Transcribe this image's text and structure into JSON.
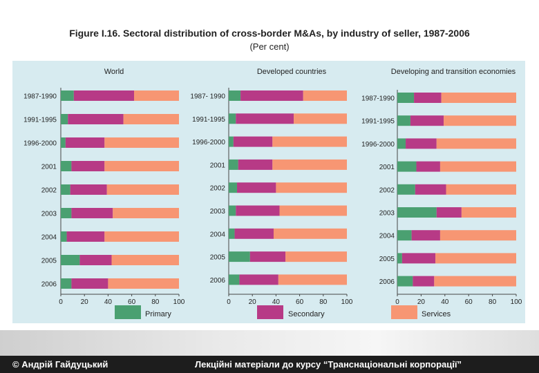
{
  "figure": {
    "title": "Figure I.16. Sectoral distribution of cross-border M&As, by industry of seller, 1987-2006",
    "subtitle": "(Per cent)"
  },
  "footer": {
    "author": "© Андрій Гайдуцький",
    "course": "Лекційні матеріали до курсу “Транснаціональні корпорації”"
  },
  "colors": {
    "primary": "#4aa071",
    "secondary": "#b73a86",
    "services": "#f79673",
    "background": "#d7ebf0"
  },
  "chart_data": [
    {
      "type": "bar",
      "orientation": "horizontal",
      "stacked": true,
      "title": "World",
      "categories": [
        "1987-1990",
        "1991-1995",
        "1996-2000",
        "2001",
        "2002",
        "2003",
        "2004",
        "2005",
        "2006"
      ],
      "series": [
        {
          "name": "Primary",
          "values": [
            11,
            6,
            4,
            9,
            8,
            9,
            5,
            16,
            9
          ]
        },
        {
          "name": "Secondary",
          "values": [
            51,
            47,
            33,
            28,
            31,
            35,
            32,
            27,
            31
          ]
        },
        {
          "name": "Services",
          "values": [
            38,
            47,
            63,
            63,
            61,
            56,
            63,
            57,
            60
          ]
        }
      ],
      "xlim": [
        0,
        100
      ],
      "xticks": [
        0,
        20,
        40,
        60,
        80,
        100
      ]
    },
    {
      "type": "bar",
      "orientation": "horizontal",
      "stacked": true,
      "title": "Developed countries",
      "categories": [
        "1987- 1990",
        "1991-1995",
        "1996-2000",
        "2001",
        "2002",
        "2003",
        "2004",
        "2005",
        "2006"
      ],
      "series": [
        {
          "name": "Primary",
          "values": [
            10,
            6,
            4,
            8,
            7,
            6,
            5,
            18,
            9
          ]
        },
        {
          "name": "Secondary",
          "values": [
            53,
            49,
            33,
            29,
            33,
            37,
            33,
            30,
            33
          ]
        },
        {
          "name": "Services",
          "values": [
            37,
            45,
            63,
            63,
            60,
            57,
            62,
            52,
            58
          ]
        }
      ],
      "xlim": [
        0,
        100
      ],
      "xticks": [
        0,
        20,
        40,
        60,
        80,
        100
      ]
    },
    {
      "type": "bar",
      "orientation": "horizontal",
      "stacked": true,
      "title": "Developing and transition economies",
      "categories": [
        "1987-1990",
        "1991-1995",
        "1996-2000",
        "2001",
        "2002",
        "2003",
        "2004",
        "2005",
        "2006"
      ],
      "series": [
        {
          "name": "Primary",
          "values": [
            14,
            11,
            7,
            16,
            15,
            33,
            12,
            4,
            13
          ]
        },
        {
          "name": "Secondary",
          "values": [
            23,
            28,
            26,
            20,
            26,
            21,
            24,
            28,
            18
          ]
        },
        {
          "name": "Services",
          "values": [
            63,
            61,
            67,
            64,
            59,
            46,
            64,
            68,
            69
          ]
        }
      ],
      "xlim": [
        0,
        100
      ],
      "xticks": [
        0,
        20,
        40,
        60,
        80,
        100
      ]
    }
  ],
  "legend": {
    "entries": [
      "Primary",
      "Secondary",
      "Services"
    ],
    "placement": "bottom"
  }
}
